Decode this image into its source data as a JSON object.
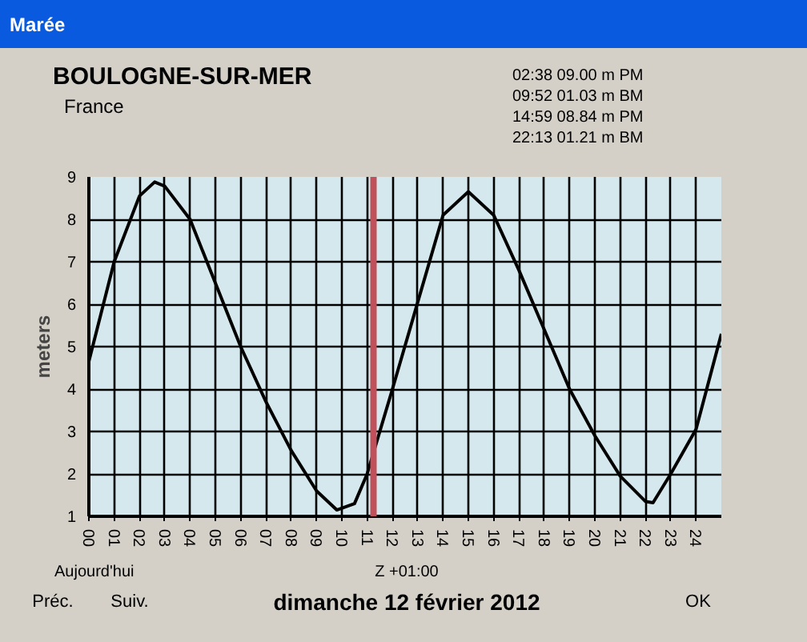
{
  "chart_data": {
    "type": "line",
    "title": "BOULOGNE-SUR-MER",
    "subtitle": "France",
    "ylabel": "meters",
    "xlabel": "dimanche 12 février 2012",
    "annotations": [
      "Marée",
      "02:38  09.00 m   PM",
      "09:52  01.03 m   BM",
      "14:59  08.84 m   PM",
      "22:13  01.21 m   BM",
      "Aujourd'hui",
      "Z +01:00",
      "Préc.",
      "Suiv.",
      "OK"
    ],
    "x": [
      0,
      1,
      2,
      2.6,
      3,
      4,
      5,
      6,
      7,
      8,
      9,
      9.8,
      10.5,
      11,
      12,
      13,
      14,
      15,
      16,
      17,
      18,
      19,
      20,
      21,
      22,
      22.3,
      23,
      24,
      25
    ],
    "series": [
      {
        "color": "#000000",
        "values": [
          4.65,
          7.0,
          8.55,
          8.88,
          8.78,
          8.0,
          6.5,
          5.0,
          3.7,
          2.55,
          1.6,
          1.15,
          1.3,
          2.0,
          4.0,
          6.05,
          8.1,
          8.65,
          8.1,
          6.8,
          5.4,
          4.0,
          2.9,
          1.95,
          1.35,
          1.32,
          2.0,
          3.05,
          5.3
        ]
      }
    ],
    "xlim": [
      0,
      25
    ],
    "ylim": [
      1,
      9
    ],
    "xticks": [
      {
        "value": 0,
        "label": "00"
      },
      {
        "value": 1,
        "label": "01"
      },
      {
        "value": 2,
        "label": "02"
      },
      {
        "value": 3,
        "label": "03"
      },
      {
        "value": 4,
        "label": "04"
      },
      {
        "value": 5,
        "label": "05"
      },
      {
        "value": 6,
        "label": "06"
      },
      {
        "value": 7,
        "label": "07"
      },
      {
        "value": 8,
        "label": "08"
      },
      {
        "value": 9,
        "label": "09"
      },
      10,
      11,
      12,
      13,
      14,
      15,
      16,
      17,
      18,
      19,
      20,
      21,
      22,
      23,
      24
    ],
    "yticks": [
      1,
      2,
      3,
      4,
      5,
      6,
      7,
      8,
      9
    ],
    "ref_lines": [
      {
        "axis": "x",
        "value": 11.25,
        "color": "#c0505a"
      }
    ],
    "grid": true,
    "marker": "none",
    "line_style": "solid"
  }
}
